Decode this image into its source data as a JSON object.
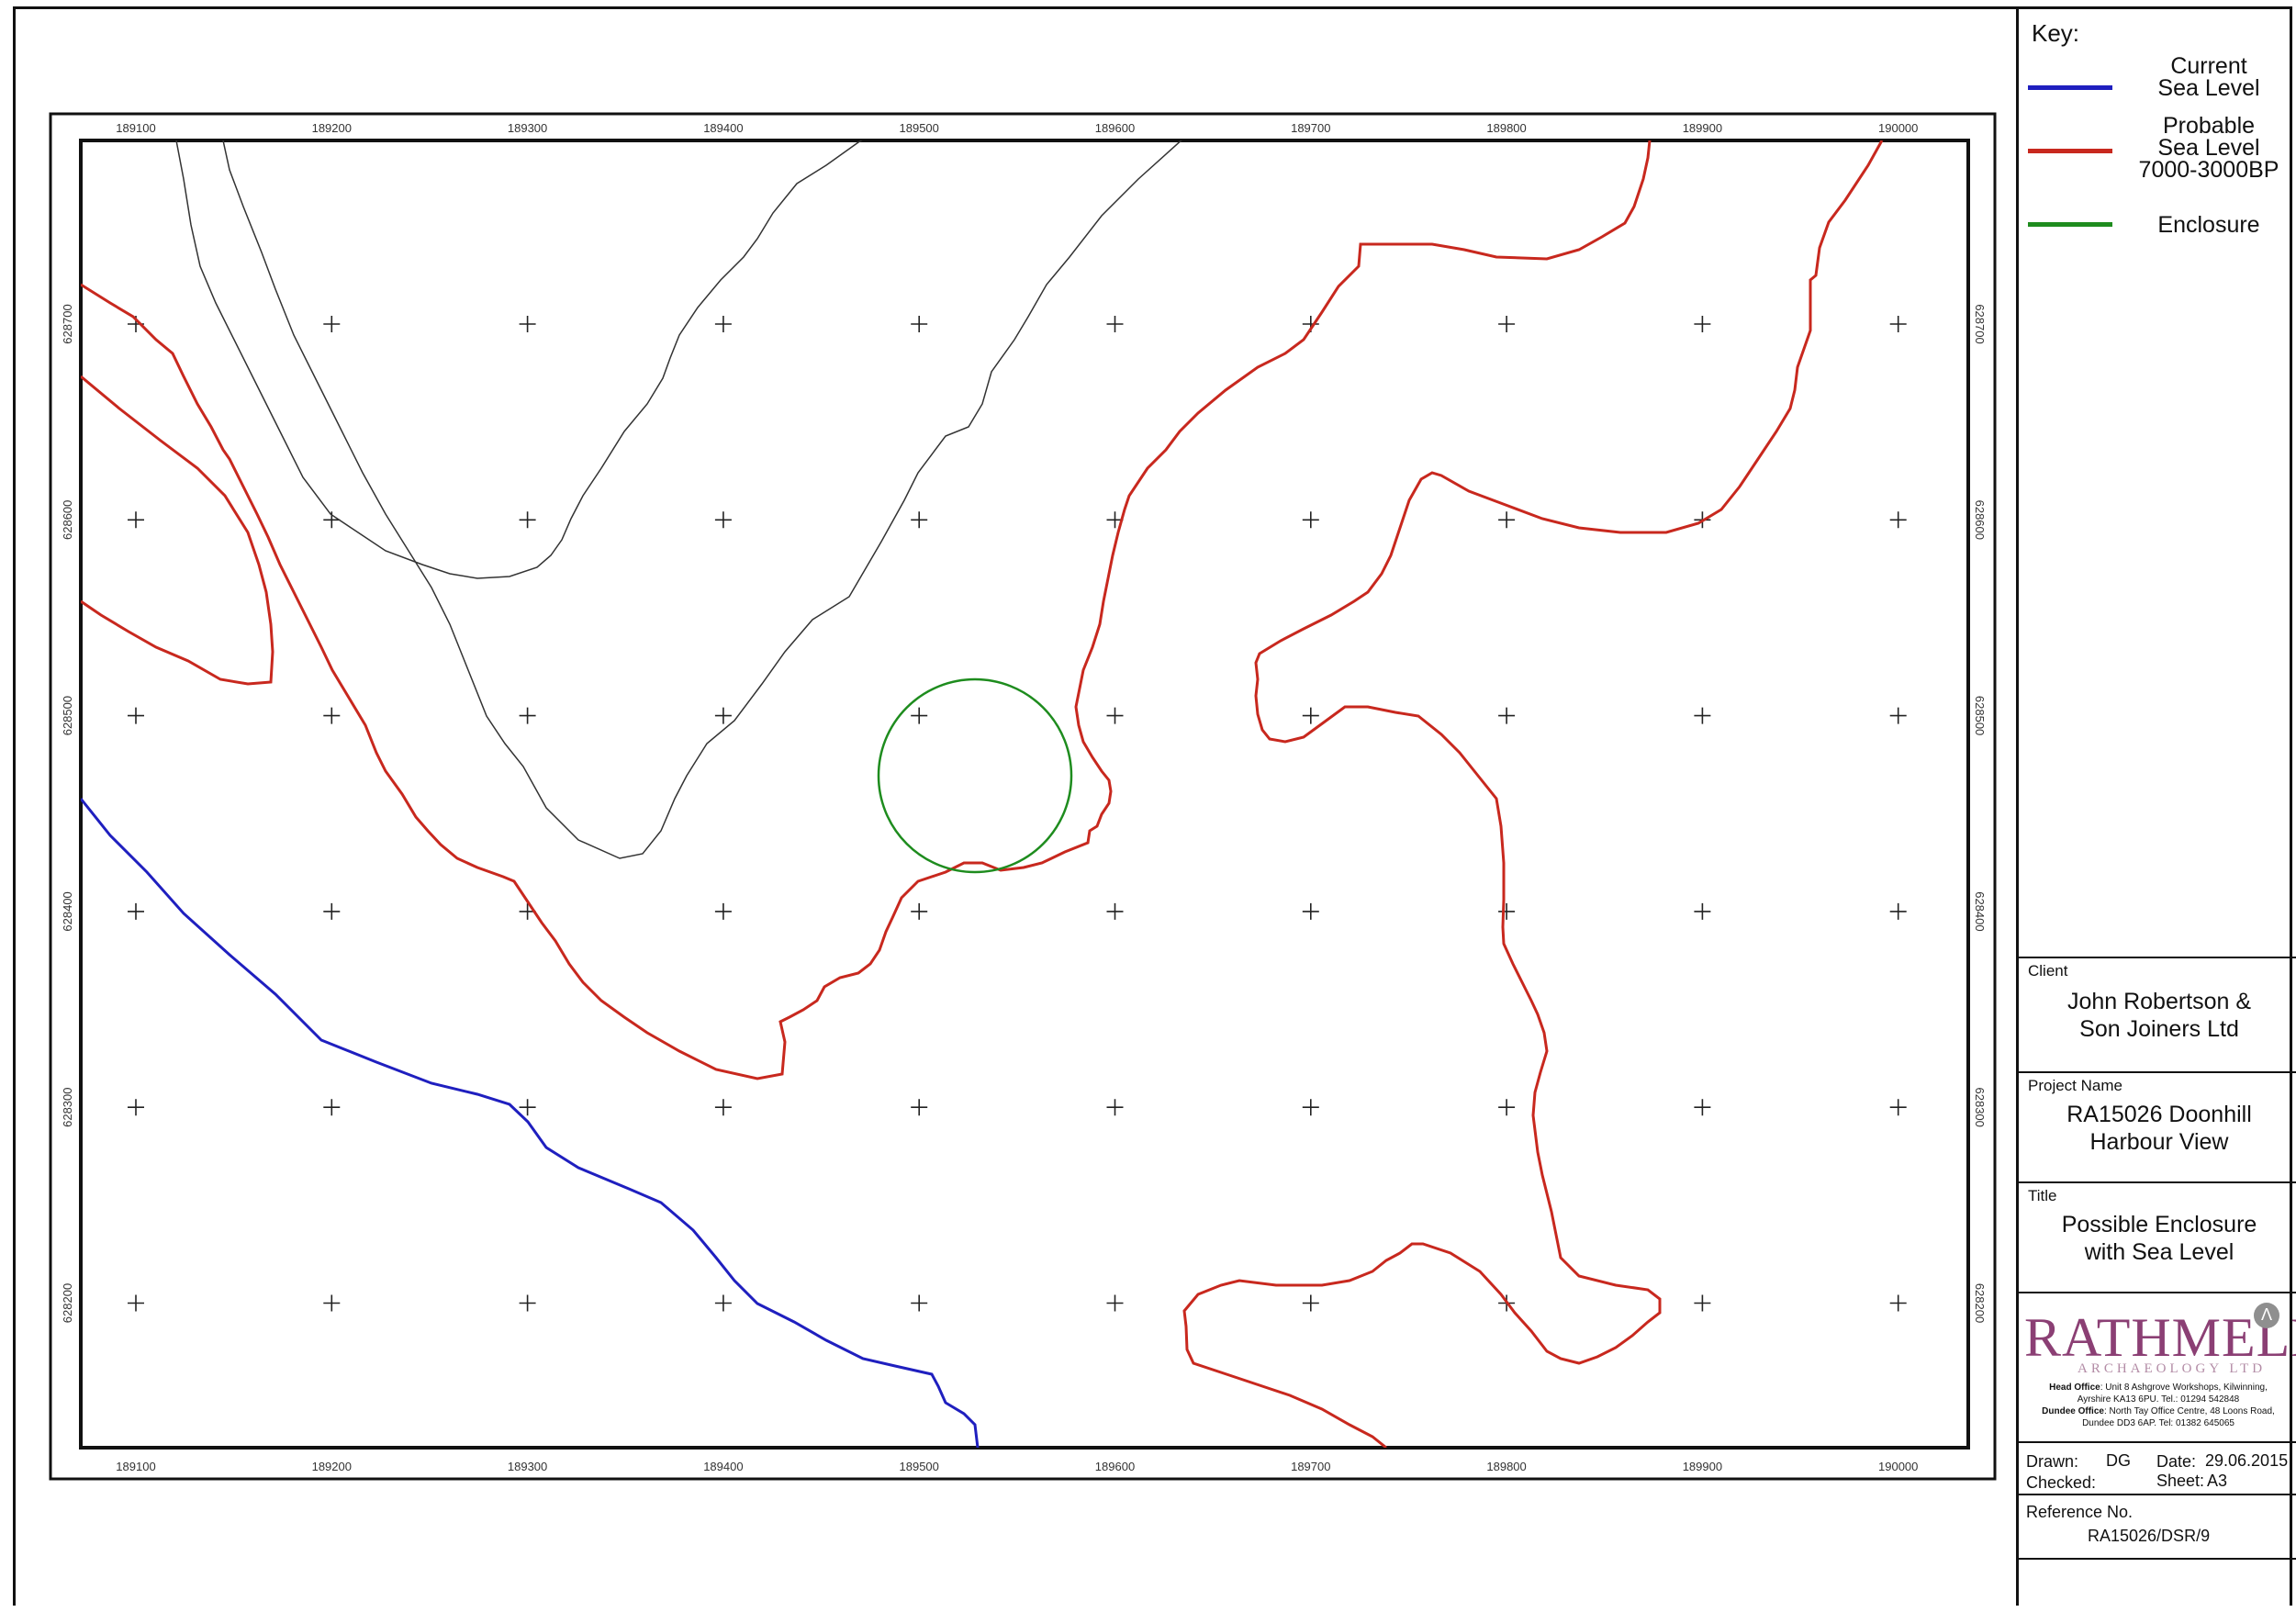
{
  "legend": {
    "title": "Key:",
    "items": [
      {
        "label": "Current\nSea Level",
        "color": "#1f1fbf"
      },
      {
        "label": "Probable\nSea Level\n7000-3000BP",
        "color": "#c8281e"
      },
      {
        "label": "Enclosure",
        "color": "#1e8c1e"
      }
    ]
  },
  "map": {
    "easting_ticks": [
      "189100",
      "189200",
      "189300",
      "189400",
      "189500",
      "189600",
      "189700",
      "189800",
      "189900",
      "190000"
    ],
    "northing_ticks": [
      "628700",
      "628600",
      "628500",
      "628400",
      "628300",
      "628200"
    ],
    "colors": {
      "contour": "#333333",
      "current": "#1f1fbf",
      "probable": "#c8281e",
      "enclosure": "#1e8c1e"
    }
  },
  "client": {
    "label": "Client",
    "value": "John Robertson &\nSon Joiners Ltd"
  },
  "project": {
    "label": "Project Name",
    "value": "RA15026 Doonhill\nHarbour View"
  },
  "title_block": {
    "label": "Title",
    "value": "Possible Enclosure\nwith Sea Level"
  },
  "logo": {
    "name": "RATHMELL",
    "subtitle": "ARCHAEOLOGY LTD",
    "head_office_label": "Head Office",
    "head_office": ": Unit 8 Ashgrove Workshops, Kilwinning,",
    "head_office_2": "Ayrshire KA13 6PU. Tel.: 01294 542848",
    "dundee_label": "Dundee Office",
    "dundee": ": North Tay Office Centre, 48 Loons Road,",
    "dundee_2": "Dundee DD3 6AP. Tel: 01382 645065"
  },
  "drawn": {
    "label": "Drawn:",
    "value": "DG"
  },
  "date": {
    "label": "Date:",
    "value": "29.06.2015"
  },
  "checked": {
    "label": "Checked:"
  },
  "sheet": {
    "label": "Sheet:",
    "value": "A3"
  },
  "reference": {
    "label": "Reference No.",
    "value": "RA15026/DSR/9"
  }
}
